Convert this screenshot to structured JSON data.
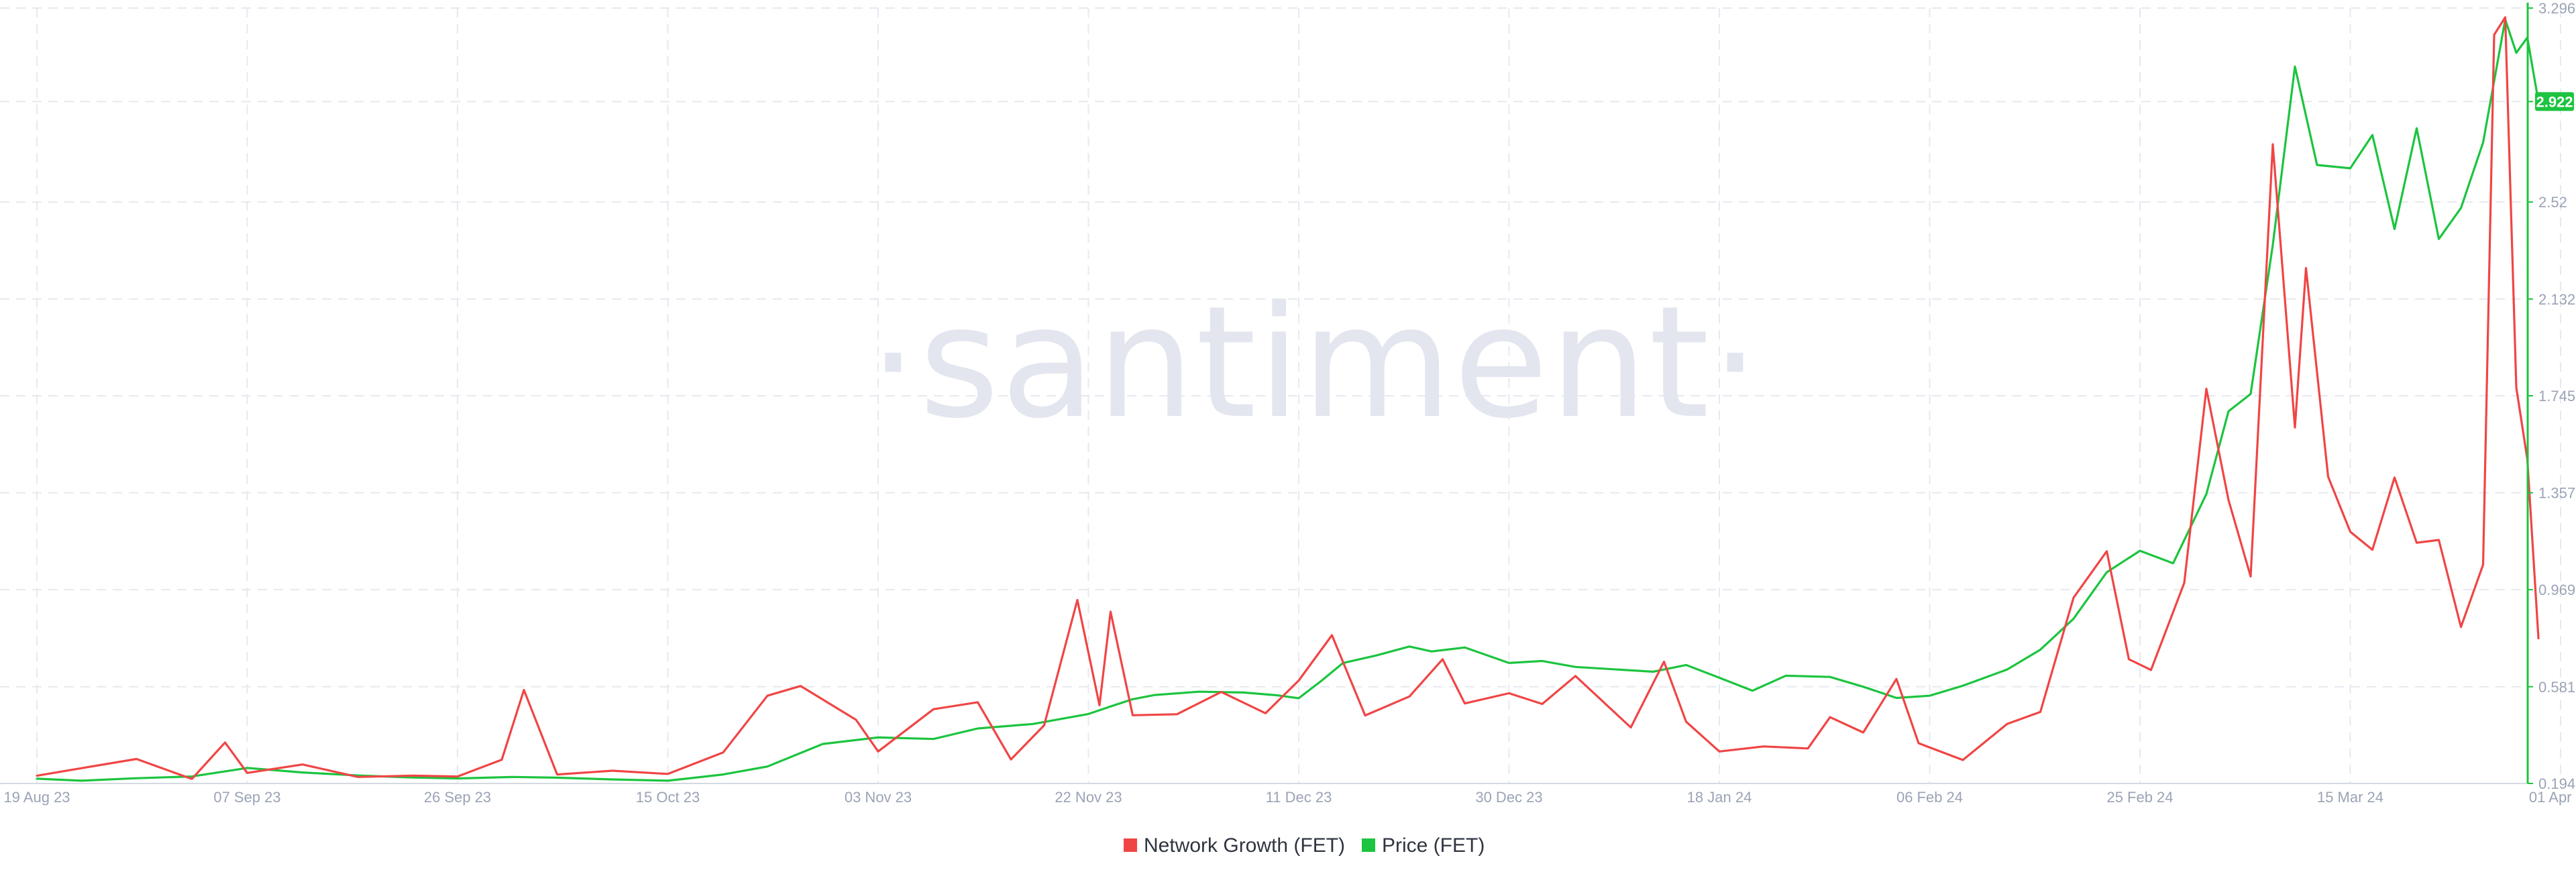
{
  "watermark": "·santiment·",
  "colors": {
    "network_growth": "#f04545",
    "price": "#1cc43f",
    "grid": "#e6e9ef",
    "axis_text": "#9aa3b5"
  },
  "legend": [
    {
      "label": "Network Growth (FET)",
      "color": "#f04545"
    },
    {
      "label": "Price (FET)",
      "color": "#1cc43f"
    }
  ],
  "price_badge": "2.922",
  "chart_data": {
    "type": "line",
    "x_ticks": [
      "19 Aug 23",
      "07 Sep 23",
      "26 Sep 23",
      "15 Oct 23",
      "03 Nov 23",
      "22 Nov 23",
      "11 Dec 23",
      "30 Dec 23",
      "18 Jan 24",
      "06 Feb 24",
      "25 Feb 24",
      "15 Mar 24",
      "01 Apr 24"
    ],
    "y_ticks": [
      "3.296",
      "2.922",
      "2.52",
      "2.132",
      "1.745",
      "1.357",
      "0.969",
      "0.581",
      "0.194"
    ],
    "ylim": [
      0.194,
      3.296
    ],
    "grid": true,
    "legend_position": "bottom-center",
    "series": [
      {
        "name": "Price (FET)",
        "axis": "right",
        "points": [
          [
            "19 Aug 23",
            0.213
          ],
          [
            "23 Aug 23",
            0.205
          ],
          [
            "28 Aug 23",
            0.215
          ],
          [
            "02 Sep 23",
            0.222
          ],
          [
            "07 Sep 23",
            0.256
          ],
          [
            "12 Sep 23",
            0.238
          ],
          [
            "17 Sep 23",
            0.226
          ],
          [
            "22 Sep 23",
            0.218
          ],
          [
            "26 Sep 23",
            0.214
          ],
          [
            "01 Oct 23",
            0.22
          ],
          [
            "05 Oct 23",
            0.217
          ],
          [
            "10 Oct 23",
            0.21
          ],
          [
            "15 Oct 23",
            0.205
          ],
          [
            "20 Oct 23",
            0.23
          ],
          [
            "24 Oct 23",
            0.262
          ],
          [
            "29 Oct 23",
            0.352
          ],
          [
            "03 Nov 23",
            0.378
          ],
          [
            "08 Nov 23",
            0.372
          ],
          [
            "12 Nov 23",
            0.414
          ],
          [
            "17 Nov 23",
            0.432
          ],
          [
            "22 Nov 23",
            0.472
          ],
          [
            "24 Nov 23",
            0.502
          ],
          [
            "26 Nov 23",
            0.531
          ],
          [
            "28 Nov 23",
            0.548
          ],
          [
            "02 Dec 23",
            0.561
          ],
          [
            "06 Dec 23",
            0.558
          ],
          [
            "09 Dec 23",
            0.547
          ],
          [
            "11 Dec 23",
            0.535
          ],
          [
            "13 Dec 23",
            0.603
          ],
          [
            "15 Dec 23",
            0.676
          ],
          [
            "18 Dec 23",
            0.706
          ],
          [
            "21 Dec 23",
            0.742
          ],
          [
            "23 Dec 23",
            0.722
          ],
          [
            "26 Dec 23",
            0.738
          ],
          [
            "30 Dec 23",
            0.676
          ],
          [
            "02 Jan 24",
            0.684
          ],
          [
            "05 Jan 24",
            0.66
          ],
          [
            "08 Jan 24",
            0.652
          ],
          [
            "12 Jan 24",
            0.641
          ],
          [
            "15 Jan 24",
            0.668
          ],
          [
            "18 Jan 24",
            0.617
          ],
          [
            "21 Jan 24",
            0.565
          ],
          [
            "24 Jan 24",
            0.625
          ],
          [
            "28 Jan 24",
            0.62
          ],
          [
            "31 Jan 24",
            0.581
          ],
          [
            "03 Feb 24",
            0.536
          ],
          [
            "06 Feb 24",
            0.545
          ],
          [
            "09 Feb 24",
            0.585
          ],
          [
            "13 Feb 24",
            0.65
          ],
          [
            "16 Feb 24",
            0.729
          ],
          [
            "19 Feb 24",
            0.853
          ],
          [
            "22 Feb 24",
            1.039
          ],
          [
            "25 Feb 24",
            1.125
          ],
          [
            "28 Feb 24",
            1.075
          ],
          [
            "02 Mar 24",
            1.352
          ],
          [
            "04 Mar 24",
            1.683
          ],
          [
            "06 Mar 24",
            1.752
          ],
          [
            "08 Mar 24",
            2.348
          ],
          [
            "10 Mar 24",
            3.062
          ],
          [
            "12 Mar 24",
            2.668
          ],
          [
            "15 Mar 24",
            2.655
          ],
          [
            "17 Mar 24",
            2.788
          ],
          [
            "19 Mar 24",
            2.412
          ],
          [
            "21 Mar 24",
            2.815
          ],
          [
            "23 Mar 24",
            2.372
          ],
          [
            "25 Mar 24",
            2.496
          ],
          [
            "27 Mar 24",
            2.758
          ],
          [
            "29 Mar 24",
            3.25
          ],
          [
            "30 Mar 24",
            3.117
          ],
          [
            "31 Mar 24",
            3.178
          ],
          [
            "01 Apr 24",
            2.922
          ]
        ]
      },
      {
        "name": "Network Growth (FET)",
        "axis": "left (hidden)",
        "points": [
          [
            "19 Aug 23",
            0.225
          ],
          [
            "23 Aug 23",
            0.255
          ],
          [
            "28 Aug 23",
            0.292
          ],
          [
            "02 Sep 23",
            0.212
          ],
          [
            "05 Sep 23",
            0.358
          ],
          [
            "07 Sep 23",
            0.236
          ],
          [
            "12 Sep 23",
            0.27
          ],
          [
            "17 Sep 23",
            0.22
          ],
          [
            "22 Sep 23",
            0.225
          ],
          [
            "26 Sep 23",
            0.222
          ],
          [
            "30 Sep 23",
            0.289
          ],
          [
            "02 Oct 23",
            0.568
          ],
          [
            "05 Oct 23",
            0.23
          ],
          [
            "10 Oct 23",
            0.245
          ],
          [
            "15 Oct 23",
            0.232
          ],
          [
            "20 Oct 23",
            0.318
          ],
          [
            "24 Oct 23",
            0.545
          ],
          [
            "27 Oct 23",
            0.584
          ],
          [
            "01 Nov 23",
            0.449
          ],
          [
            "03 Nov 23",
            0.322
          ],
          [
            "08 Nov 23",
            0.491
          ],
          [
            "12 Nov 23",
            0.519
          ],
          [
            "15 Nov 23",
            0.29
          ],
          [
            "18 Nov 23",
            0.427
          ],
          [
            "21 Nov 23",
            0.928
          ],
          [
            "23 Nov 23",
            0.507
          ],
          [
            "24 Nov 23",
            0.881
          ],
          [
            "26 Nov 23",
            0.467
          ],
          [
            "30 Nov 23",
            0.471
          ],
          [
            "04 Dec 23",
            0.56
          ],
          [
            "08 Dec 23",
            0.475
          ],
          [
            "11 Dec 23",
            0.606
          ],
          [
            "14 Dec 23",
            0.787
          ],
          [
            "17 Dec 23",
            0.466
          ],
          [
            "21 Dec 23",
            0.542
          ],
          [
            "24 Dec 23",
            0.691
          ],
          [
            "26 Dec 23",
            0.514
          ],
          [
            "30 Dec 23",
            0.555
          ],
          [
            "02 Jan 24",
            0.512
          ],
          [
            "05 Jan 24",
            0.624
          ],
          [
            "10 Jan 24",
            0.418
          ],
          [
            "13 Jan 24",
            0.681
          ],
          [
            "15 Jan 24",
            0.441
          ],
          [
            "18 Jan 24",
            0.322
          ],
          [
            "22 Jan 24",
            0.342
          ],
          [
            "26 Jan 24",
            0.334
          ],
          [
            "28 Jan 24",
            0.459
          ],
          [
            "31 Jan 24",
            0.398
          ],
          [
            "03 Feb 24",
            0.612
          ],
          [
            "05 Feb 24",
            0.355
          ],
          [
            "09 Feb 24",
            0.288
          ],
          [
            "13 Feb 24",
            0.432
          ],
          [
            "16 Feb 24",
            0.48
          ],
          [
            "19 Feb 24",
            0.937
          ],
          [
            "22 Feb 24",
            1.123
          ],
          [
            "24 Feb 24",
            0.691
          ],
          [
            "26 Feb 24",
            0.648
          ],
          [
            "29 Feb 24",
            0.996
          ],
          [
            "02 Mar 24",
            1.773
          ],
          [
            "04 Mar 24",
            1.328
          ],
          [
            "06 Mar 24",
            1.022
          ],
          [
            "08 Mar 24",
            2.751
          ],
          [
            "10 Mar 24",
            1.618
          ],
          [
            "11 Mar 24",
            2.256
          ],
          [
            "13 Mar 24",
            1.421
          ],
          [
            "15 Mar 24",
            1.201
          ],
          [
            "17 Mar 24",
            1.129
          ],
          [
            "19 Mar 24",
            1.418
          ],
          [
            "21 Mar 24",
            1.157
          ],
          [
            "23 Mar 24",
            1.168
          ],
          [
            "25 Mar 24",
            0.82
          ],
          [
            "27 Mar 24",
            1.069
          ],
          [
            "28 Mar 24",
            3.189
          ],
          [
            "29 Mar 24",
            3.259
          ],
          [
            "30 Mar 24",
            1.778
          ],
          [
            "31 Mar 24",
            1.49
          ],
          [
            "01 Apr 24",
            0.775
          ]
        ]
      }
    ]
  }
}
